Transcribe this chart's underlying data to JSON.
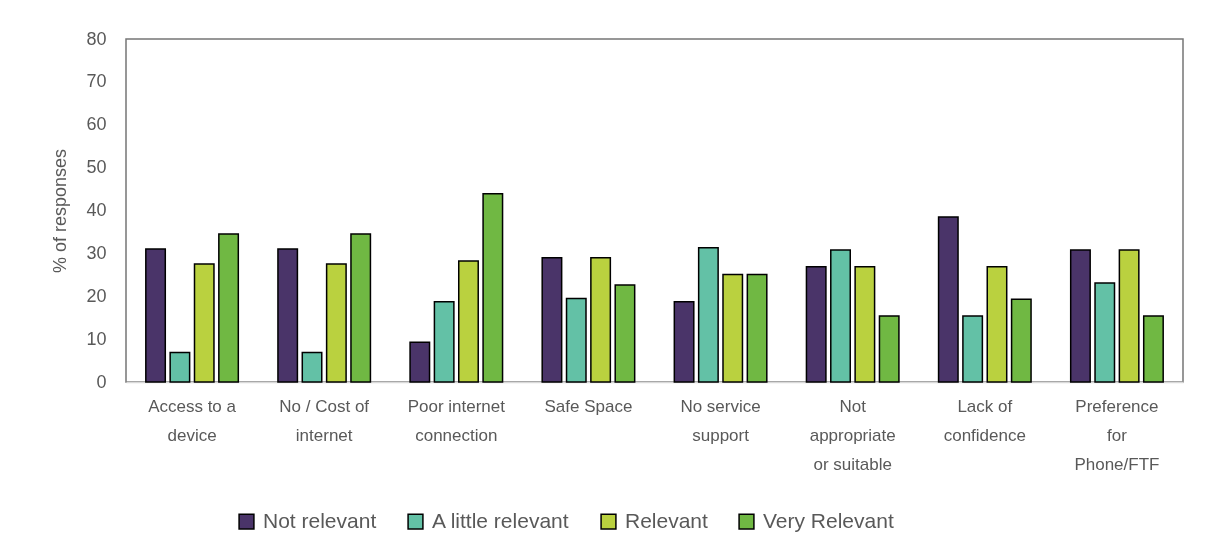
{
  "chart_data": {
    "type": "bar",
    "ylabel": "% of responses",
    "categories": [
      "Access to a device",
      "No / Cost of internet",
      "Poor internet connection",
      "Safe Space",
      "No service support",
      "Not appropriate or suitable",
      "Lack of confidence",
      "Preference for Phone/FTF"
    ],
    "series": [
      {
        "name": "Not relevant",
        "color": "#4a3469",
        "values": [
          31.0,
          31.0,
          9.3,
          29.0,
          18.7,
          26.9,
          38.5,
          30.8
        ]
      },
      {
        "name": "A little relevant",
        "color": "#63c1a6",
        "values": [
          6.9,
          6.9,
          18.7,
          19.5,
          31.3,
          30.8,
          15.4,
          23.1
        ]
      },
      {
        "name": "Relevant",
        "color": "#bad13f",
        "values": [
          27.5,
          27.5,
          28.2,
          29.0,
          25.1,
          26.9,
          26.9,
          30.8
        ]
      },
      {
        "name": "Very Relevant",
        "color": "#70b843",
        "values": [
          34.5,
          34.5,
          43.9,
          22.6,
          25.1,
          15.4,
          19.3,
          15.4
        ]
      }
    ],
    "ylim": [
      0,
      80
    ],
    "yticks": [
      0,
      10,
      20,
      30,
      40,
      50,
      60,
      70,
      80
    ],
    "grid": false,
    "legend": "bottom"
  }
}
